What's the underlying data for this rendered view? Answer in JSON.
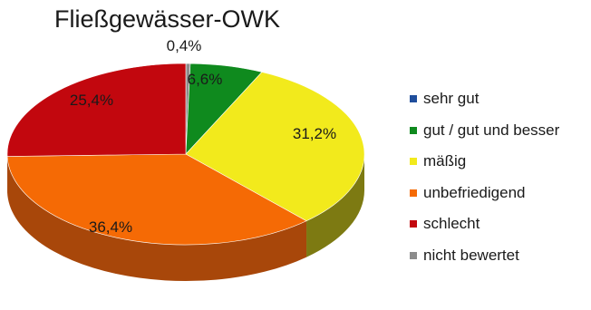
{
  "chart_data": {
    "type": "pie",
    "title": "Fließgewässer-OWK",
    "categories": [
      "sehr gut",
      "gut / gut und besser",
      "mäßig",
      "unbefriedigend",
      "schlecht",
      "nicht bewertet"
    ],
    "values": [
      0,
      6.6,
      31.2,
      36.4,
      25.4,
      0.4
    ],
    "value_labels": [
      "",
      "6,6%",
      "31,2%",
      "36,4%",
      "25,4%",
      "0,4%"
    ],
    "colors": [
      "#1f4e9c",
      "#0f8a1e",
      "#f2ea1c",
      "#f56a05",
      "#c2070e",
      "#8c8c8c"
    ],
    "side_colors": [
      "#15376e",
      "#0a5c14",
      "#7d7a12",
      "#a8470a",
      "#7e0408",
      "#5a5a5a"
    ],
    "legend": {
      "position": "right"
    },
    "style": "3d"
  }
}
